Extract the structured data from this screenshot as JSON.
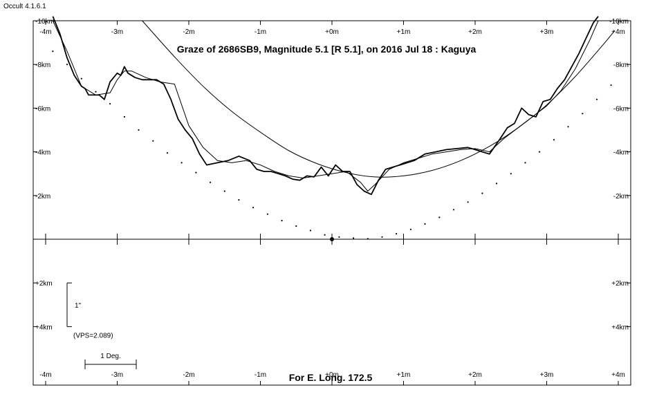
{
  "app": {
    "version_label": "Occult 4.1.6.1"
  },
  "chart_data": {
    "type": "line",
    "title": "Graze of  2686SB9,  Magnitude 5.1 [R 5.1],  on 2016 Jul 18  :  Kaguya",
    "footer": "For E. Long. 172.5",
    "x_tick_labels": [
      "-4m",
      "-3m",
      "-2m",
      "-1m",
      "+0m",
      "+1m",
      "+2m",
      "+3m",
      "+4m"
    ],
    "x_tick_values": [
      -4,
      -3,
      -2,
      -1,
      0,
      1,
      2,
      3,
      4
    ],
    "y_tick_labels": [
      "-10km",
      "-8km",
      "-6km",
      "-4km",
      "-2km",
      "+2km",
      "+4km"
    ],
    "y_tick_values": [
      -10,
      -8,
      -6,
      -4,
      -2,
      2,
      4
    ],
    "xlim": [
      -4.15,
      4.15
    ],
    "ylim": [
      -10,
      6.3
    ],
    "scale_bar": {
      "label": "1\"",
      "note": "(VPS=2.089)",
      "y_from": 2,
      "y_to": 4
    },
    "degree_bar": {
      "label": "1 Deg."
    },
    "series": [
      {
        "style": "profile",
        "x": [
          -3.9,
          -3.8,
          -3.7,
          -3.6,
          -3.5,
          -3.45,
          -3.4,
          -3.3,
          -3.25,
          -3.18,
          -3.1,
          -3.0,
          -2.95,
          -2.9,
          -2.85,
          -2.75,
          -2.65,
          -2.55,
          -2.45,
          -2.35,
          -2.25,
          -2.15,
          -2.05,
          -1.95,
          -1.85,
          -1.75,
          -1.6,
          -1.45,
          -1.3,
          -1.15,
          -1.05,
          -0.95,
          -0.85,
          -0.75,
          -0.65,
          -0.55,
          -0.45,
          -0.35,
          -0.25,
          -0.15,
          -0.05,
          0.05,
          0.15,
          0.25,
          0.35,
          0.45,
          0.55,
          0.65,
          0.75,
          0.85,
          0.95,
          1.05,
          1.15,
          1.3,
          1.45,
          1.6,
          1.75,
          1.9,
          2.0,
          2.1,
          2.2,
          2.35,
          2.45,
          2.55,
          2.65,
          2.75,
          2.85,
          2.95,
          3.05,
          3.15,
          3.25,
          3.35,
          3.45,
          3.55,
          3.65,
          3.72
        ],
        "y": [
          -10.2,
          -9.4,
          -8.3,
          -7.5,
          -7.0,
          -6.9,
          -6.6,
          -6.6,
          -6.6,
          -6.4,
          -7.2,
          -7.6,
          -7.5,
          -7.9,
          -7.6,
          -7.4,
          -7.3,
          -7.3,
          -7.3,
          -7.1,
          -6.4,
          -5.5,
          -5.0,
          -4.6,
          -3.9,
          -3.4,
          -3.5,
          -3.6,
          -3.8,
          -3.6,
          -3.2,
          -3.1,
          -3.1,
          -3.0,
          -2.9,
          -2.75,
          -2.7,
          -2.9,
          -2.85,
          -3.3,
          -2.9,
          -3.4,
          -3.1,
          -3.1,
          -2.5,
          -2.2,
          -2.05,
          -2.7,
          -3.2,
          -3.3,
          -3.4,
          -3.5,
          -3.6,
          -3.9,
          -4.0,
          -4.1,
          -4.15,
          -4.2,
          -4.1,
          -4.0,
          -3.9,
          -4.6,
          -5.1,
          -5.3,
          -6.0,
          -5.7,
          -5.6,
          -6.3,
          -6.4,
          -6.9,
          -7.3,
          -7.9,
          -8.5,
          -9.2,
          -9.9,
          -10.2
        ]
      },
      {
        "style": "smoothed",
        "x": [
          -3.9,
          -3.7,
          -3.5,
          -3.3,
          -3.1,
          -3.0,
          -2.9,
          -2.8,
          -2.6,
          -2.4,
          -2.2,
          -2.0,
          -1.8,
          -1.6,
          -1.4,
          -1.2,
          -1.0,
          -0.8,
          -0.6,
          -0.4,
          -0.2,
          0.0,
          0.2,
          0.4,
          0.5,
          0.6,
          0.8,
          1.0,
          1.2,
          1.4,
          1.6,
          1.8,
          2.0,
          2.2,
          2.4,
          2.6,
          2.8,
          3.0,
          3.2,
          3.4,
          3.6,
          3.72
        ],
        "y": [
          -10.0,
          -8.6,
          -7.0,
          -6.6,
          -6.7,
          -7.3,
          -7.7,
          -7.7,
          -7.4,
          -7.2,
          -7.1,
          -5.2,
          -4.2,
          -3.6,
          -3.5,
          -3.6,
          -3.4,
          -3.1,
          -2.9,
          -2.8,
          -2.9,
          -3.0,
          -3.1,
          -2.6,
          -2.2,
          -2.5,
          -3.2,
          -3.5,
          -3.7,
          -3.9,
          -4.0,
          -4.1,
          -4.15,
          -4.0,
          -4.6,
          -5.1,
          -5.6,
          -6.1,
          -6.8,
          -7.8,
          -9.1,
          -10.0
        ]
      },
      {
        "style": "limb-arc",
        "x": [
          -2.65,
          -2.2,
          -1.8,
          -1.4,
          -1.0,
          -0.6,
          -0.2,
          0.2,
          0.6,
          1.0,
          1.4,
          1.8,
          2.2,
          2.6,
          3.0,
          3.4,
          3.8,
          3.95
        ],
        "y": [
          -10.0,
          -8.35,
          -7.0,
          -5.85,
          -4.9,
          -4.05,
          -3.45,
          -3.05,
          -2.85,
          -2.9,
          -3.15,
          -3.6,
          -4.25,
          -5.1,
          -6.15,
          -7.45,
          -8.95,
          -9.55
        ]
      },
      {
        "style": "dotted-path",
        "x": [
          -3.9,
          -3.7,
          -3.5,
          -3.3,
          -3.1,
          -2.9,
          -2.7,
          -2.5,
          -2.3,
          -2.1,
          -1.9,
          -1.7,
          -1.5,
          -1.3,
          -1.1,
          -0.9,
          -0.7,
          -0.5,
          -0.3,
          -0.1,
          0.1,
          0.3,
          0.5,
          0.7,
          0.9,
          1.1,
          1.3,
          1.5,
          1.7,
          1.9,
          2.1,
          2.3,
          2.5,
          2.7,
          2.9,
          3.1,
          3.3,
          3.5,
          3.7,
          3.9
        ],
        "y": [
          -8.6,
          -8.0,
          -7.35,
          -6.75,
          -6.2,
          -5.6,
          -5.0,
          -4.5,
          -3.95,
          -3.5,
          -3.05,
          -2.6,
          -2.2,
          -1.8,
          -1.45,
          -1.15,
          -0.85,
          -0.6,
          -0.4,
          -0.2,
          -0.1,
          -0.05,
          -0.02,
          -0.1,
          -0.25,
          -0.45,
          -0.7,
          -1.0,
          -1.35,
          -1.7,
          -2.1,
          -2.55,
          -3.0,
          -3.5,
          -4.0,
          -4.55,
          -5.15,
          -5.75,
          -6.4,
          -7.05
        ]
      }
    ],
    "star": {
      "x": 0,
      "y": 0
    }
  }
}
